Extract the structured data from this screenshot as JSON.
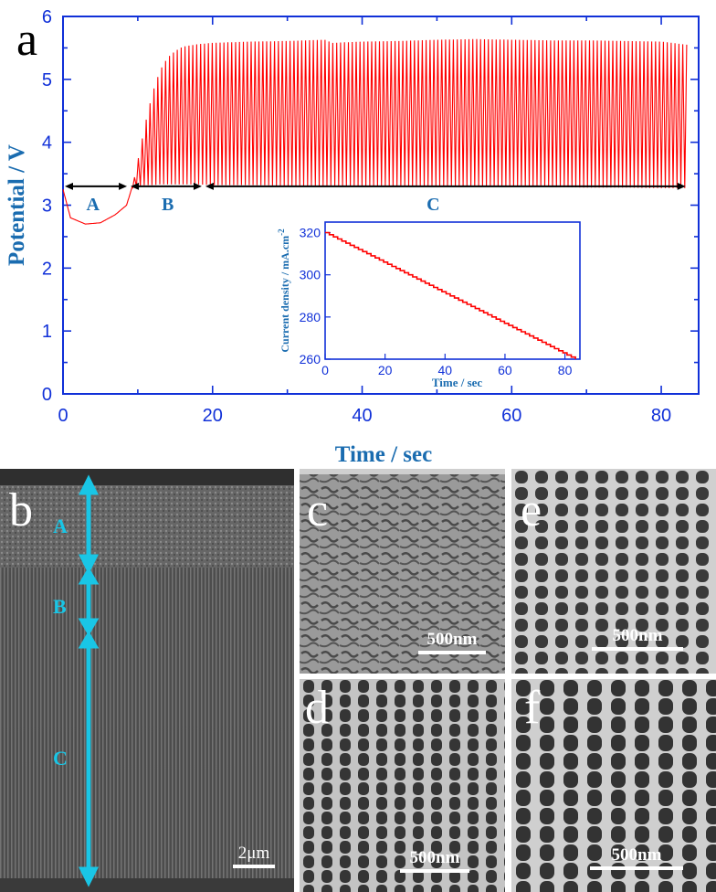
{
  "chart_data": [
    {
      "type": "line",
      "panel_label": "a",
      "xlabel": "Time / sec",
      "ylabel": "Potential / V",
      "xlim": [
        0,
        85
      ],
      "ylim": [
        0,
        6
      ],
      "xticks": [
        0,
        20,
        40,
        60,
        80
      ],
      "yticks": [
        0,
        1,
        2,
        3,
        4,
        5,
        6
      ],
      "series": [
        {
          "color": "#ff0000",
          "envelope": {
            "x": [
              0,
              1,
              3,
              5,
              7,
              8.5,
              9.4,
              10,
              11,
              12,
              13,
              14,
              15,
              16,
              18,
              20,
              25,
              30,
              35,
              36,
              40,
              45,
              50,
              55,
              60,
              65,
              70,
              75,
              80,
              83.5
            ],
            "upper": [
              3.25,
              2.8,
              2.7,
              2.72,
              2.85,
              3.0,
              3.35,
              3.7,
              4.3,
              4.8,
              5.15,
              5.35,
              5.45,
              5.52,
              5.56,
              5.58,
              5.6,
              5.61,
              5.63,
              5.58,
              5.6,
              5.61,
              5.63,
              5.64,
              5.63,
              5.62,
              5.62,
              5.61,
              5.6,
              5.55
            ],
            "lower": [
              3.25,
              2.8,
              2.7,
              2.72,
              2.85,
              3.0,
              3.3,
              3.3,
              3.32,
              3.32,
              3.33,
              3.33,
              3.33,
              3.33,
              3.33,
              3.32,
              3.32,
              3.31,
              3.31,
              3.31,
              3.3,
              3.3,
              3.3,
              3.29,
              3.29,
              3.29,
              3.28,
              3.28,
              3.27,
              3.27
            ]
          },
          "oscillation_start": 9.3,
          "oscillation_period_sec": 0.52
        }
      ],
      "regions": [
        {
          "label": "A",
          "x": [
            0,
            8.8
          ]
        },
        {
          "label": "B",
          "x": [
            8.8,
            18.8
          ]
        },
        {
          "label": "C",
          "x": [
            18.8,
            83.5
          ]
        }
      ],
      "inset": {
        "type": "line",
        "xlabel": "Time / sec",
        "ylabel": "Current density / mA.cm",
        "ylabel_superscript": "-2",
        "xlim": [
          0,
          85
        ],
        "ylim": [
          260,
          325
        ],
        "xticks": [
          0,
          20,
          40,
          60,
          80
        ],
        "yticks": [
          260,
          280,
          300,
          320
        ],
        "series": [
          {
            "color": "#ff0000",
            "x": [
              0,
              83.5
            ],
            "y": [
              320,
              260
            ],
            "shape": "staircase"
          }
        ]
      }
    }
  ],
  "micrographs": {
    "b": {
      "letter": "b",
      "scale": "2μm",
      "labels": [
        "A",
        "B",
        "C"
      ]
    },
    "c": {
      "letter": "c",
      "scale": "500nm"
    },
    "d": {
      "letter": "d",
      "scale": "500nm"
    },
    "e": {
      "letter": "e",
      "scale": "500nm"
    },
    "f": {
      "letter": "f",
      "scale": "500nm"
    }
  },
  "colors": {
    "axis": "#1030d8",
    "label": "#1a6cb0",
    "curve": "#ff0000",
    "cyan": "#19c6e6"
  }
}
